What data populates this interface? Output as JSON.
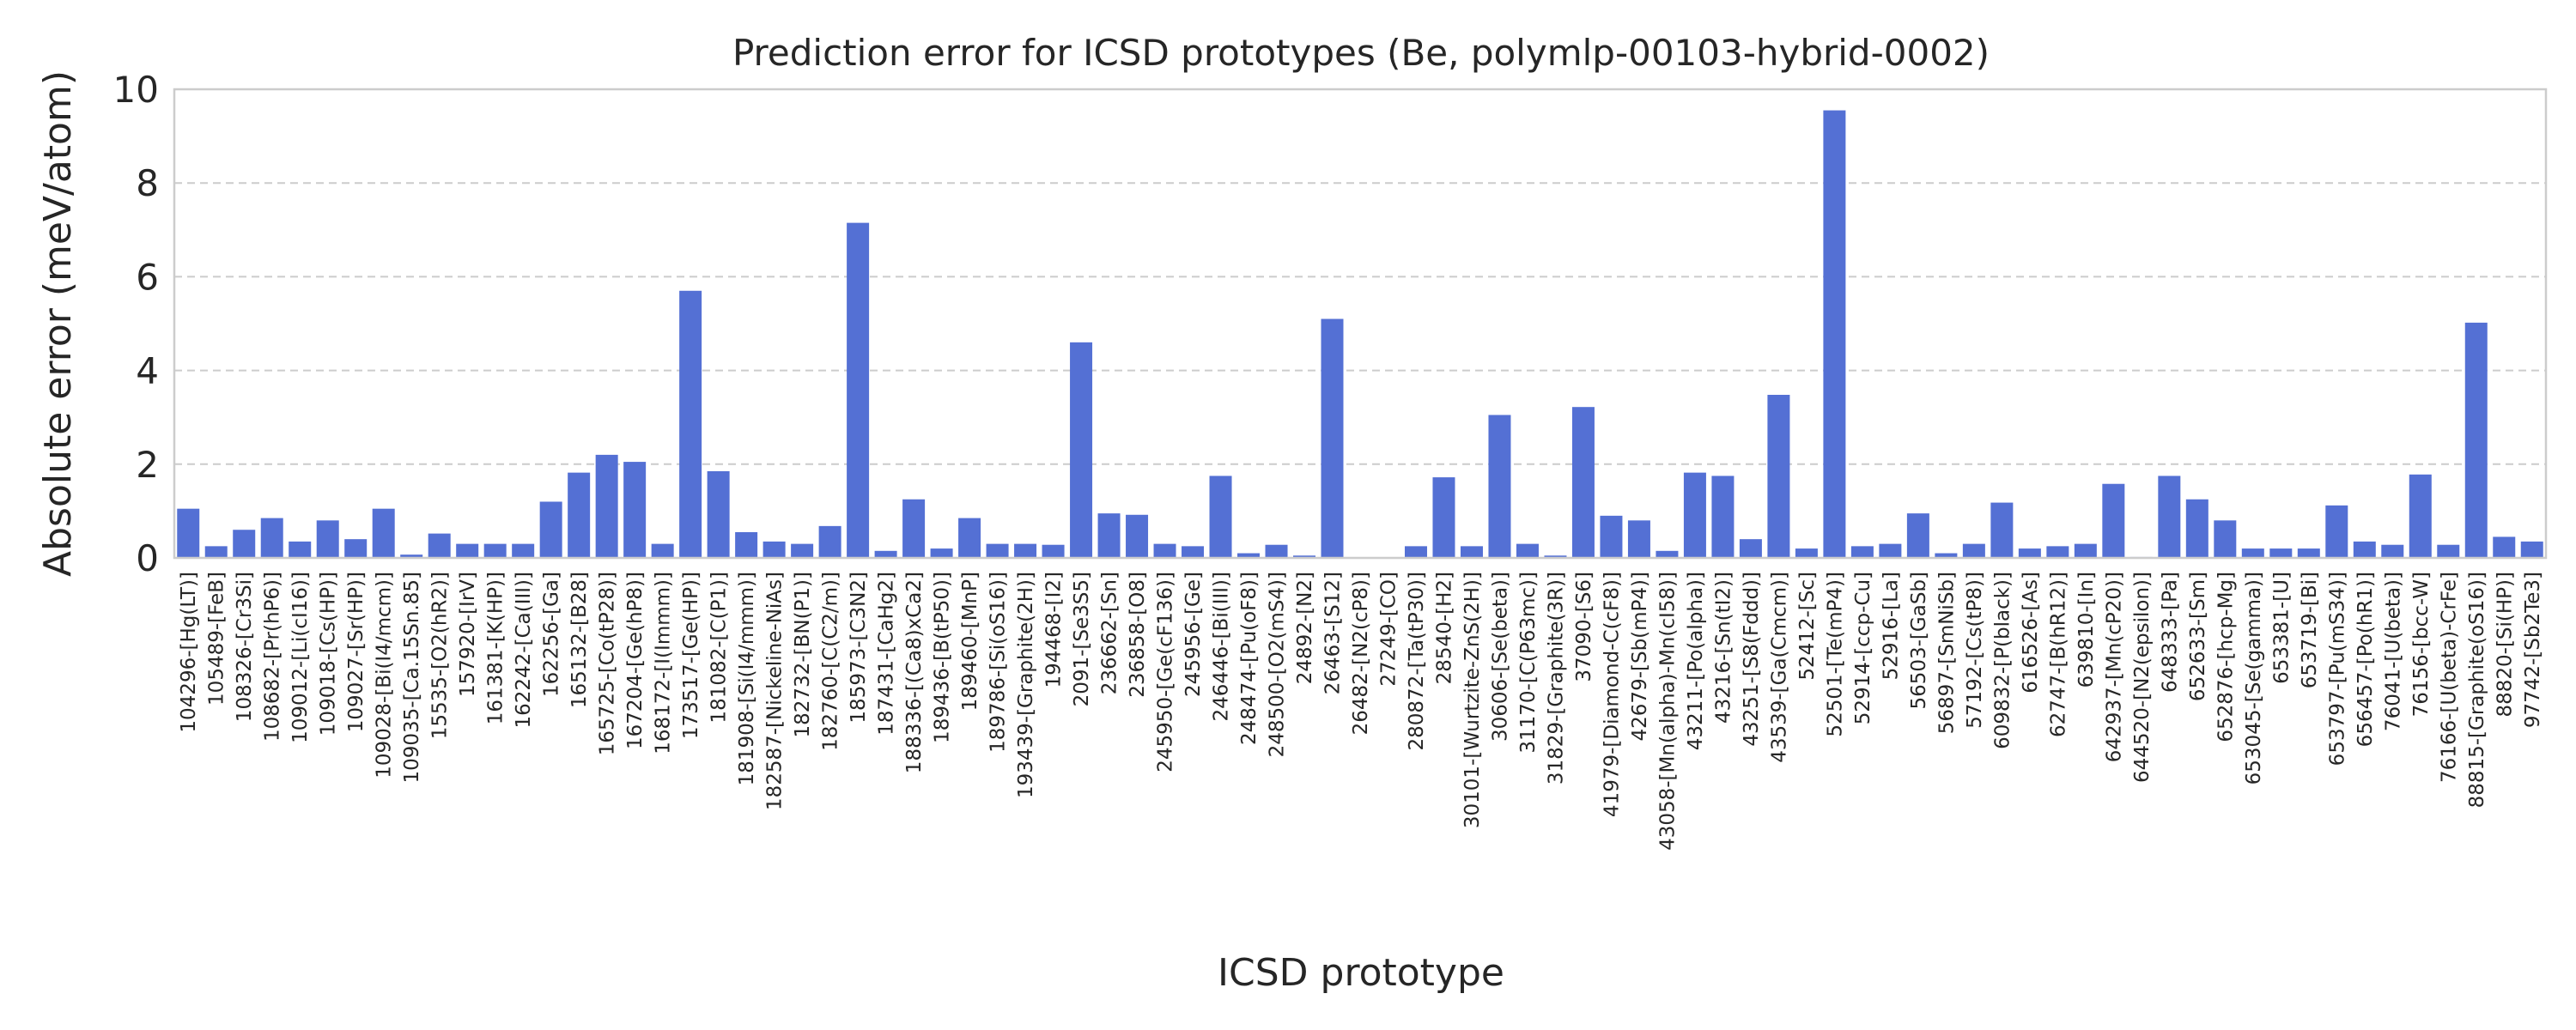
{
  "chart_data": {
    "type": "bar",
    "title": "Prediction error for ICSD prototypes (Be, polymlp-00103-hybrid-0002)",
    "xlabel": "ICSD prototype",
    "ylabel": "Absolute error (meV/atom)",
    "ylim": [
      0,
      10
    ],
    "yticks": [
      0,
      2,
      4,
      6,
      8,
      10
    ],
    "grid": "y",
    "bar_color": "#5470d4",
    "categories": [
      "104296-[Hg(LT)]",
      "105489-[FeB]",
      "108326-[Cr3Si]",
      "108682-[Pr(hP6)]",
      "109012-[Li(cI16)]",
      "109018-[Cs(HP)]",
      "109027-[Sr(HP)]",
      "109028-[Bi(I4/mcm)]",
      "109035-[Ca.15Sn.85]",
      "15535-[O2(hR2)]",
      "157920-[IrV]",
      "161381-[K(HP)]",
      "162242-[Ca(III)]",
      "162256-[Ga]",
      "165132-[B28]",
      "165725-[Co(tP28)]",
      "167204-[Ge(hP8)]",
      "168172-[I(Immm)]",
      "173517-[Ge(HP)]",
      "181082-[C(P1)]",
      "181908-[Si(I4/mmm)]",
      "182587-[Nickeline-NiAs]",
      "182732-[BN(P1)]",
      "182760-[C(C2/m)]",
      "185973-[C3N2]",
      "187431-[CaHg2]",
      "188336-[(Ca8)xCa2]",
      "189436-[B(tP50)]",
      "189460-[MnP]",
      "189786-[Si(oS16)]",
      "193439-[Graphite(2H)]",
      "194468-[I2]",
      "2091-[Se3S5]",
      "236662-[Sn]",
      "236858-[O8]",
      "245950-[Ge(cF136)]",
      "245956-[Ge]",
      "246446-[Bi(III)]",
      "248474-[Pu(oF8)]",
      "248500-[O2(mS4)]",
      "24892-[N2]",
      "26463-[S12]",
      "26482-[N2(cP8)]",
      "27249-[CO]",
      "280872-[Ta(tP30)]",
      "28540-[H2]",
      "30101-[Wurtzite-ZnS(2H)]",
      "30606-[Se(beta)]",
      "31170-[C(P63mc)]",
      "31829-[Graphite(3R)]",
      "37090-[S6]",
      "41979-[Diamond-C(cF8)]",
      "42679-[Sb(mP4)]",
      "43058-[Mn(alpha)-Mn(cI58)]",
      "43211-[Po(alpha)]",
      "43216-[Sn(tI2)]",
      "43251-[S8(Fddd)]",
      "43539-[Ga(Cmcm)]",
      "52412-[Sc]",
      "52501-[Te(mP4)]",
      "52914-[ccp-Cu]",
      "52916-[La]",
      "56503-[GaSb]",
      "56897-[SmNiSb]",
      "57192-[Cs(tP8)]",
      "609832-[P(black)]",
      "616526-[As]",
      "62747-[B(hR12)]",
      "639810-[In]",
      "642937-[Mn(cP20)]",
      "644520-[N2(epsilon)]",
      "648333-[Pa]",
      "652633-[Sm]",
      "652876-[hcp-Mg]",
      "653045-[Se(gamma)]",
      "653381-[U]",
      "653719-[Bi]",
      "653797-[Pu(mS34)]",
      "656457-[Po(hR1)]",
      "76041-[U(beta)]",
      "76156-[bcc-W]",
      "76166-[U(beta)-CrFe]",
      "88815-[Graphite(oS16)]",
      "88820-[Si(HP)]",
      "97742-[Sb2Te3]"
    ],
    "values": [
      1.05,
      0.25,
      0.6,
      0.85,
      0.35,
      0.8,
      0.4,
      1.05,
      0.07,
      0.52,
      0.3,
      0.3,
      0.3,
      1.2,
      1.82,
      2.2,
      2.05,
      0.3,
      5.7,
      1.85,
      0.55,
      0.35,
      0.3,
      0.68,
      7.15,
      0.15,
      1.25,
      0.2,
      0.85,
      0.3,
      0.3,
      0.28,
      4.6,
      0.95,
      0.92,
      0.3,
      0.25,
      1.75,
      0.1,
      0.28,
      0.05,
      5.1,
      0.0,
      0.0,
      0.25,
      1.72,
      0.25,
      3.05,
      0.3,
      0.05,
      3.22,
      0.9,
      0.8,
      0.15,
      1.82,
      1.75,
      0.4,
      3.48,
      0.2,
      9.55,
      0.25,
      0.3,
      0.95,
      0.1,
      0.3,
      1.18,
      0.2,
      0.25,
      0.3,
      1.58,
      0.02,
      1.75,
      1.25,
      0.8,
      0.2,
      0.2,
      0.2,
      1.12,
      0.35,
      0.28,
      1.78,
      0.28,
      5.02,
      0.45,
      0.35
    ]
  }
}
